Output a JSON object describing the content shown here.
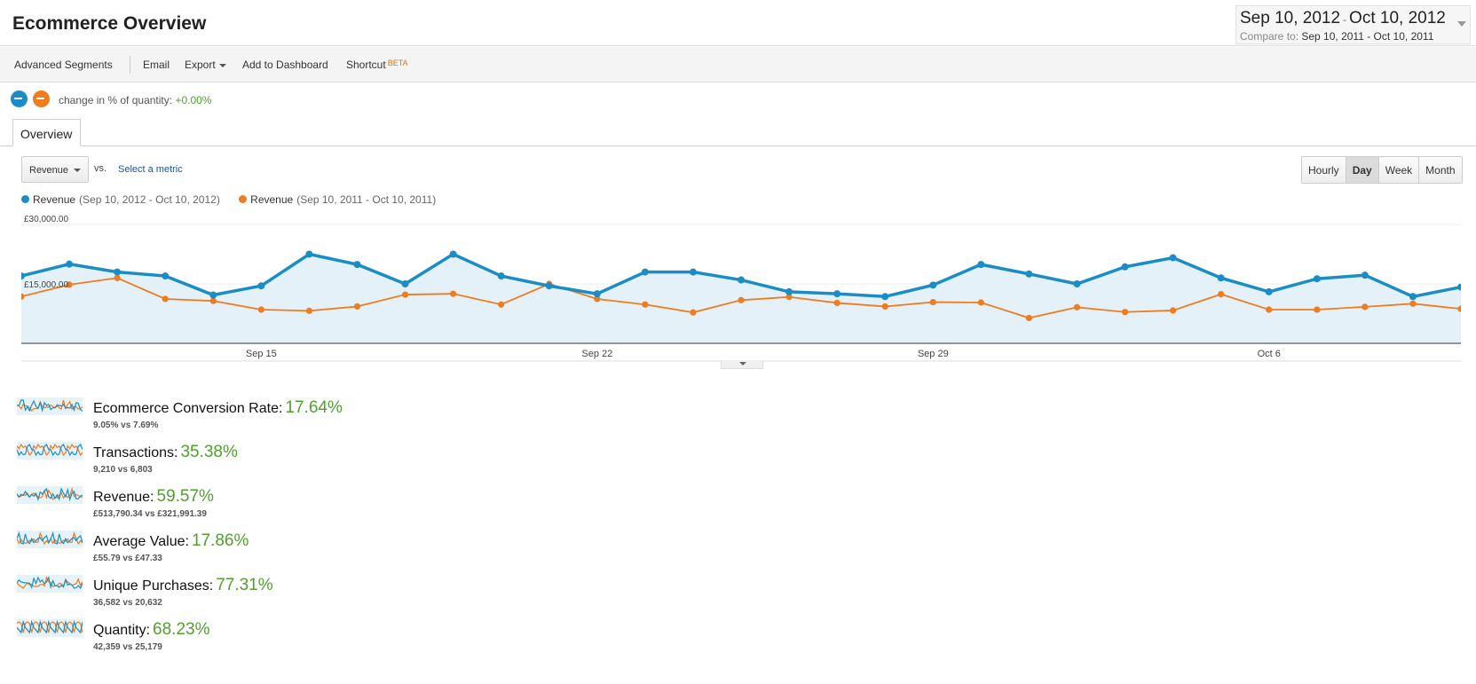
{
  "header": {
    "title": "Ecommerce Overview",
    "date_range": {
      "start": "Sep 10, 2012",
      "separator": "-",
      "end": "Oct 10, 2012",
      "compare_label": "Compare to:",
      "compare_dates": "Sep 10, 2011 - Oct 10, 2011"
    }
  },
  "toolbar": {
    "advanced_segments": "Advanced Segments",
    "email": "Email",
    "export": "Export",
    "add_to_dashboard": "Add to Dashboard",
    "shortcut": "Shortcut",
    "beta": "BETA"
  },
  "segments": {
    "label": "change in % of quantity:",
    "value": "+0.00%",
    "colors": [
      "#1b8dc6",
      "#ef7c1e"
    ]
  },
  "tabs": [
    "Overview"
  ],
  "chart_controls": {
    "metric": "Revenue",
    "vs": "vs.",
    "select_metric": "Select a metric",
    "granularity": [
      "Hourly",
      "Day",
      "Week",
      "Month"
    ],
    "active_granularity": "Day"
  },
  "legend": [
    {
      "name": "Revenue",
      "range": "(Sep 10, 2012 - Oct 10, 2012)",
      "color": "#1b8dc6"
    },
    {
      "name": "Revenue",
      "range": "(Sep 10, 2011 - Oct 10, 2011)",
      "color": "#ef7c1e"
    }
  ],
  "chart_data": {
    "type": "line",
    "x": [
      "Sep 10",
      "Sep 11",
      "Sep 12",
      "Sep 13",
      "Sep 14",
      "Sep 15",
      "Sep 16",
      "Sep 17",
      "Sep 18",
      "Sep 19",
      "Sep 20",
      "Sep 21",
      "Sep 22",
      "Sep 23",
      "Sep 24",
      "Sep 25",
      "Sep 26",
      "Sep 27",
      "Sep 28",
      "Sep 29",
      "Sep 30",
      "Oct 1",
      "Oct 2",
      "Oct 3",
      "Oct 4",
      "Oct 5",
      "Oct 6",
      "Oct 7",
      "Oct 8",
      "Oct 9",
      "Oct 10",
      "Oct 11"
    ],
    "tick_labels": [
      "Sep 15",
      "Sep 22",
      "Sep 29",
      "Oct 6"
    ],
    "y_tick_labels": [
      "£30,000.00",
      "£15,000.00"
    ],
    "ylim": [
      0,
      30000
    ],
    "grid": true,
    "series": [
      {
        "name": "Revenue",
        "color": "#1b8dc6",
        "values": [
          17000,
          20000,
          18000,
          17000,
          12200,
          14500,
          22500,
          19900,
          15000,
          22500,
          17000,
          14500,
          12500,
          18000,
          18000,
          16000,
          13000,
          12500,
          11800,
          14700,
          19900,
          17500,
          15000,
          19300,
          21600,
          16500,
          13000,
          16300,
          17200,
          11800,
          14200,
          16500
        ]
      },
      {
        "name": "Revenue",
        "color": "#ef7c1e",
        "values": [
          11800,
          14800,
          16500,
          11200,
          10700,
          8500,
          8200,
          9300,
          12300,
          12500,
          9800,
          15000,
          11200,
          9800,
          7800,
          10900,
          11700,
          10200,
          9300,
          10400,
          10300,
          6400,
          9100,
          7900,
          8300,
          12400,
          8500,
          8500,
          9200,
          10000,
          8700,
          8000
        ]
      }
    ]
  },
  "metrics": [
    {
      "name": "Ecommerce Conversion Rate:",
      "change": "17.64%",
      "compare": "9.05% vs 7.69%"
    },
    {
      "name": "Transactions:",
      "change": "35.38%",
      "compare": "9,210 vs 6,803"
    },
    {
      "name": "Revenue:",
      "change": "59.57%",
      "compare": "£513,790.34 vs £321,991.39"
    },
    {
      "name": "Average Value:",
      "change": "17.86%",
      "compare": "£55.79 vs £47.33"
    },
    {
      "name": "Unique Purchases:",
      "change": "77.31%",
      "compare": "36,582 vs 20,632"
    },
    {
      "name": "Quantity:",
      "change": "68.23%",
      "compare": "42,359 vs 25,179"
    }
  ]
}
